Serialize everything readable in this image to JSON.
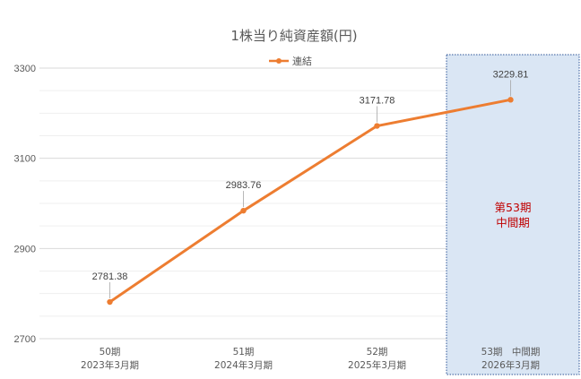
{
  "colors": {
    "line": "#ED7D31",
    "highlight_fill": "#DAE6F4",
    "highlight_border": "#2F5597",
    "note_text": "#C00000",
    "grid": "#D9D9D9",
    "axis_text": "#595959"
  },
  "chart_data": {
    "type": "line",
    "title": "1株当り純資産額(円)",
    "categories": [
      [
        "50期",
        "2023年3月期"
      ],
      [
        "51期",
        "2024年3月期"
      ],
      [
        "52期",
        "2025年3月期"
      ],
      [
        "53期　中間期",
        "2026年3月期"
      ]
    ],
    "series": [
      {
        "name": "連結",
        "values": [
          2781.38,
          2983.76,
          3171.78,
          3229.81
        ]
      }
    ],
    "data_labels": [
      "2781.38",
      "2983.76",
      "3171.78",
      "3229.81"
    ],
    "yticks": [
      2700,
      2900,
      3100,
      3300
    ],
    "ylim": [
      2700,
      3330
    ],
    "grid": true,
    "minor_gridlines": true,
    "legend_position": "top",
    "highlight": {
      "category_index": 3,
      "label_lines": [
        "第53期",
        "中間期"
      ]
    }
  }
}
